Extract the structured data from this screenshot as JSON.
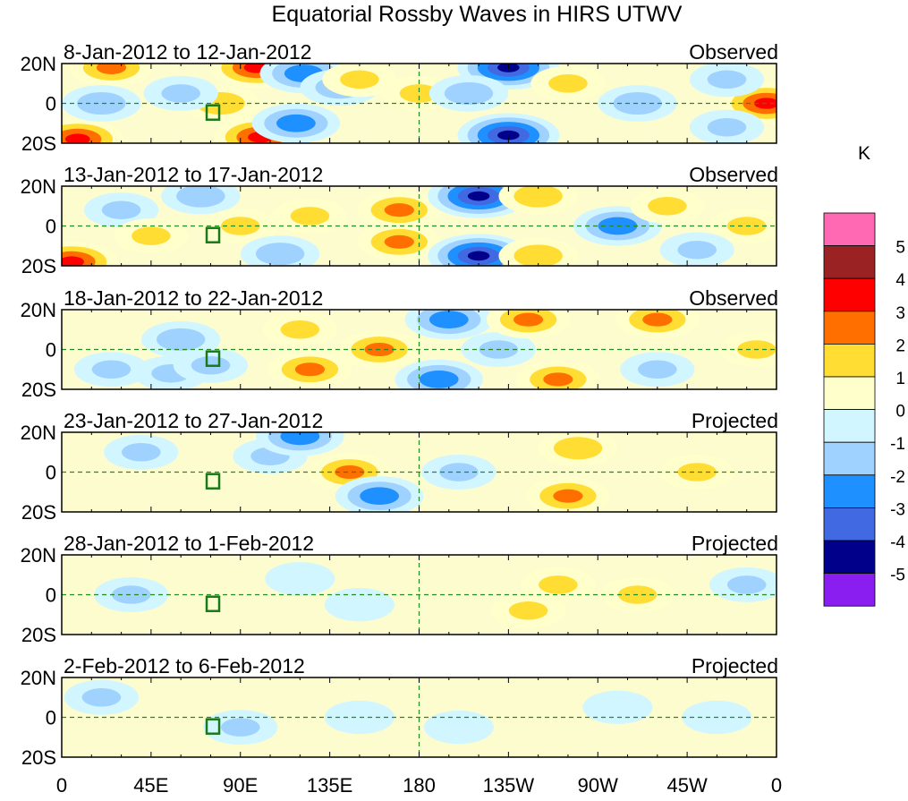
{
  "chart_data": {
    "type": "heatmap",
    "title": "Equatorial Rossby Waves in HIRS UTWV",
    "units_label": "K",
    "x_ticks": [
      "0",
      "45E",
      "90E",
      "135E",
      "180",
      "135W",
      "90W",
      "45W",
      "0"
    ],
    "y_ticks": [
      "20N",
      "0",
      "20S"
    ],
    "xlim": [
      0,
      360
    ],
    "ylim": [
      -20,
      20
    ],
    "colorbar": {
      "labels": [
        "5",
        "4",
        "3",
        "2",
        "1",
        "0",
        "-1",
        "-2",
        "-3",
        "-4",
        "-5"
      ],
      "colors": [
        "#ff69b4",
        "#9b2222",
        "#ff0000",
        "#ff6f00",
        "#ffdd33",
        "#ffffcc",
        "#d2f6ff",
        "#a0d2ff",
        "#1e90ff",
        "#4169e1",
        "#00008b",
        "#8a1ef0"
      ]
    },
    "panels": [
      {
        "dates": "8-Jan-2012 to 12-Jan-2012",
        "status": "Observed",
        "features": [
          [
            8,
            -18,
            3.5
          ],
          [
            25,
            18,
            2.5
          ],
          [
            20,
            0,
            -2
          ],
          [
            80,
            0,
            2
          ],
          [
            100,
            -17,
            3.5
          ],
          [
            98,
            18,
            3.5
          ],
          [
            122,
            15,
            -3
          ],
          [
            118,
            -10,
            -3
          ],
          [
            140,
            8,
            -2
          ],
          [
            150,
            12,
            1.5
          ],
          [
            180,
            5,
            1.5
          ],
          [
            225,
            18,
            -4.5
          ],
          [
            225,
            -16,
            -4.5
          ],
          [
            205,
            5,
            -2
          ],
          [
            255,
            10,
            1.5
          ],
          [
            290,
            0,
            -2
          ],
          [
            355,
            0,
            3.5
          ],
          [
            335,
            12,
            -1.5
          ],
          [
            335,
            -12,
            -1.5
          ],
          [
            60,
            5,
            -1.5
          ]
        ]
      },
      {
        "dates": "13-Jan-2012 to 17-Jan-2012",
        "status": "Observed",
        "features": [
          [
            5,
            -18,
            3.5
          ],
          [
            30,
            8,
            -1.5
          ],
          [
            45,
            -5,
            1.5
          ],
          [
            70,
            15,
            -2
          ],
          [
            90,
            0,
            1.5
          ],
          [
            110,
            -14,
            -2
          ],
          [
            125,
            5,
            1.5
          ],
          [
            170,
            8,
            2.5
          ],
          [
            170,
            -8,
            2.5
          ],
          [
            210,
            15,
            -4.5
          ],
          [
            210,
            -15,
            -4.5
          ],
          [
            240,
            15,
            2
          ],
          [
            240,
            -15,
            2
          ],
          [
            280,
            0,
            -3
          ],
          [
            305,
            10,
            1.5
          ],
          [
            345,
            0,
            1.5
          ],
          [
            320,
            -12,
            -1.5
          ]
        ]
      },
      {
        "dates": "18-Jan-2012 to 22-Jan-2012",
        "status": "Observed",
        "features": [
          [
            25,
            -10,
            -1.5
          ],
          [
            60,
            5,
            -2
          ],
          [
            55,
            -12,
            -1.5
          ],
          [
            75,
            -8,
            -1.5
          ],
          [
            120,
            10,
            1.5
          ],
          [
            125,
            -10,
            2.5
          ],
          [
            160,
            0,
            2.5
          ],
          [
            195,
            15,
            -3
          ],
          [
            190,
            -15,
            -3
          ],
          [
            220,
            0,
            -1.5
          ],
          [
            235,
            15,
            2.5
          ],
          [
            250,
            -15,
            2.5
          ],
          [
            300,
            15,
            2.5
          ],
          [
            300,
            -10,
            -1.5
          ],
          [
            350,
            0,
            1.5
          ]
        ]
      },
      {
        "dates": "23-Jan-2012 to 27-Jan-2012",
        "status": "Projected",
        "features": [
          [
            40,
            10,
            -1.5
          ],
          [
            105,
            8,
            -1.5
          ],
          [
            120,
            18,
            -3
          ],
          [
            145,
            0,
            2.5
          ],
          [
            160,
            -12,
            -3
          ],
          [
            200,
            0,
            -1.5
          ],
          [
            260,
            12,
            2
          ],
          [
            255,
            -12,
            2.5
          ],
          [
            320,
            0,
            1.5
          ]
        ]
      },
      {
        "dates": "28-Jan-2012 to 1-Feb-2012",
        "status": "Projected",
        "features": [
          [
            35,
            0,
            -1.5
          ],
          [
            120,
            8,
            -1
          ],
          [
            150,
            -5,
            -1
          ],
          [
            250,
            5,
            1.5
          ],
          [
            235,
            -8,
            1.5
          ],
          [
            290,
            0,
            1.5
          ],
          [
            345,
            5,
            -1.5
          ]
        ]
      },
      {
        "dates": "2-Feb-2012 to 6-Feb-2012",
        "status": "Projected",
        "features": [
          [
            20,
            10,
            -1.5
          ],
          [
            90,
            -5,
            -1.5
          ],
          [
            150,
            0,
            -1
          ],
          [
            200,
            -5,
            -1
          ],
          [
            280,
            5,
            -1
          ],
          [
            330,
            0,
            -1
          ]
        ]
      }
    ]
  }
}
